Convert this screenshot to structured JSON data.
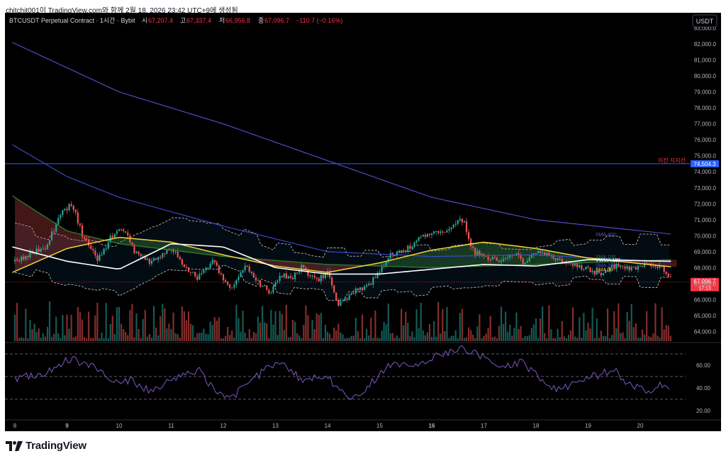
{
  "caption": "chitchit001이 TradingView.com와 함께 2월 18, 2026 23:42 UTC+9에 생성됨",
  "legend": {
    "symbol": "BTCUSDT Perpetual Contract · 1시간 · Bybit",
    "open_label": "시",
    "open": "67,207.4",
    "high_label": "고",
    "high": "67,337.4",
    "low_label": "저",
    "low": "66,956.8",
    "close_label": "종",
    "close": "67,096.7",
    "change": "−110.7 (−0.16%)"
  },
  "currency_button": "USDT",
  "brand": "TradingView",
  "colors": {
    "up": "#26a69a",
    "down": "#ef5350",
    "sma400": "#5b4fd6",
    "sma200": "#3b4fd9",
    "sma100": "#2e7d32",
    "sma50": "#f7d13b",
    "vwma": "#ffffff",
    "rsi": "#7e57c2",
    "hline": "#2962ff",
    "label_red": "#f23645"
  },
  "chart_data": {
    "type": "candlestick",
    "price_axis": {
      "ticks": [
        "83,000.0",
        "82,000.0",
        "81,000.0",
        "80,000.0",
        "79,000.0",
        "78,000.0",
        "77,000.0",
        "76,000.0",
        "75,000.0",
        "74,000.0",
        "73,000.0",
        "72,000.0",
        "71,000.0",
        "70,000.0",
        "69,000.0",
        "68,000.0",
        "67,000.0",
        "66,000.0",
        "65,000.0",
        "64,000.0"
      ],
      "ylim": [
        63400,
        83600
      ]
    },
    "time_axis": {
      "ticks": [
        "8",
        "9",
        "10",
        "11",
        "12",
        "13",
        "14",
        "15",
        "16",
        "17",
        "18",
        "19",
        "20"
      ],
      "bold": [
        "9",
        "16"
      ]
    },
    "horizontal_line": {
      "label": "이전 지지선",
      "value": 74504.3,
      "badge": "74,504.3"
    },
    "last_price": {
      "badge": "67,096.7",
      "countdown": "17:13",
      "value": 67096.7
    },
    "series_labels": [
      "SMA 400",
      "SMA 100",
      "VWMA 100",
      "SMA 200",
      "SMA 50"
    ],
    "price_path": [
      [
        0,
        68400
      ],
      [
        0.3,
        68900
      ],
      [
        0.6,
        69300
      ],
      [
        0.9,
        71500
      ],
      [
        1.1,
        72000
      ],
      [
        1.3,
        70000
      ],
      [
        1.6,
        68500
      ],
      [
        1.9,
        70200
      ],
      [
        2.1,
        70300
      ],
      [
        2.3,
        69000
      ],
      [
        2.6,
        68300
      ],
      [
        3.0,
        69200
      ],
      [
        3.3,
        68000
      ],
      [
        3.5,
        67300
      ],
      [
        3.8,
        68400
      ],
      [
        4.0,
        67200
      ],
      [
        4.2,
        66700
      ],
      [
        4.4,
        68200
      ],
      [
        4.6,
        67300
      ],
      [
        4.9,
        66400
      ],
      [
        5.1,
        67600
      ],
      [
        5.3,
        67300
      ],
      [
        5.5,
        68000
      ],
      [
        5.8,
        67200
      ],
      [
        6.0,
        67700
      ],
      [
        6.2,
        65700
      ],
      [
        6.4,
        66100
      ],
      [
        6.6,
        66700
      ],
      [
        6.8,
        66900
      ],
      [
        7.0,
        67800
      ],
      [
        7.2,
        68800
      ],
      [
        7.5,
        69100
      ],
      [
        7.8,
        70000
      ],
      [
        8.1,
        70300
      ],
      [
        8.3,
        70400
      ],
      [
        8.6,
        71000
      ],
      [
        8.8,
        69000
      ],
      [
        9.0,
        68700
      ],
      [
        9.3,
        68500
      ],
      [
        9.6,
        68800
      ],
      [
        9.8,
        68200
      ],
      [
        10.0,
        69000
      ],
      [
        10.3,
        68700
      ],
      [
        10.6,
        68300
      ],
      [
        10.9,
        68000
      ],
      [
        11.2,
        67600
      ],
      [
        11.5,
        68100
      ],
      [
        11.8,
        67900
      ],
      [
        12.1,
        68300
      ],
      [
        12.4,
        68000
      ],
      [
        12.6,
        67300
      ]
    ],
    "sma400": [
      [
        -0.05,
        82100
      ],
      [
        2,
        79000
      ],
      [
        4,
        77000
      ],
      [
        6,
        74700
      ],
      [
        8,
        72400
      ],
      [
        10,
        71000
      ],
      [
        12.6,
        70100
      ]
    ],
    "sma200": [
      [
        -0.05,
        75700
      ],
      [
        1,
        73700
      ],
      [
        2,
        72400
      ],
      [
        4,
        70600
      ],
      [
        6,
        69000
      ],
      [
        8,
        68700
      ],
      [
        10,
        68800
      ],
      [
        12.6,
        68350
      ]
    ],
    "sma100": [
      [
        -0.05,
        72500
      ],
      [
        1,
        70300
      ],
      [
        2,
        69500
      ],
      [
        4,
        68700
      ],
      [
        6,
        68200
      ],
      [
        8,
        68000
      ],
      [
        10,
        68200
      ],
      [
        12.6,
        68500
      ]
    ],
    "sma50": [
      [
        -0.05,
        67700
      ],
      [
        1,
        69200
      ],
      [
        2,
        69900
      ],
      [
        3,
        69600
      ],
      [
        4,
        68800
      ],
      [
        5,
        68100
      ],
      [
        6,
        67700
      ],
      [
        7,
        68300
      ],
      [
        8,
        69100
      ],
      [
        9,
        69600
      ],
      [
        10,
        69200
      ],
      [
        11,
        68600
      ],
      [
        12.6,
        68050
      ]
    ],
    "vwma100": [
      [
        -0.05,
        69300
      ],
      [
        1,
        68400
      ],
      [
        2,
        67900
      ],
      [
        3,
        69500
      ],
      [
        4,
        69300
      ],
      [
        5,
        68000
      ],
      [
        6,
        67600
      ],
      [
        7,
        67600
      ],
      [
        8,
        67900
      ],
      [
        9,
        68200
      ],
      [
        10,
        68100
      ],
      [
        11,
        68500
      ],
      [
        12.6,
        68400
      ]
    ],
    "bands": {
      "spread": 1400
    },
    "volume": {
      "ylabel": ""
    },
    "rsi": {
      "levels": [
        70,
        50,
        30
      ],
      "ticks": [
        "60.00",
        "40.00",
        "20.00"
      ],
      "ylim": [
        13,
        80
      ],
      "values": [
        48,
        50,
        52,
        55,
        62,
        66,
        60,
        58,
        48,
        45,
        47,
        40,
        38,
        45,
        50,
        52,
        55,
        42,
        35,
        32,
        45,
        50,
        58,
        62,
        55,
        45,
        50,
        52,
        38,
        30,
        35,
        45,
        55,
        63,
        60,
        58,
        66,
        70,
        72,
        75,
        70,
        65,
        58,
        60,
        62,
        55,
        45,
        40,
        42,
        48,
        50,
        52,
        58,
        45,
        40,
        38,
        42,
        40
      ]
    }
  }
}
